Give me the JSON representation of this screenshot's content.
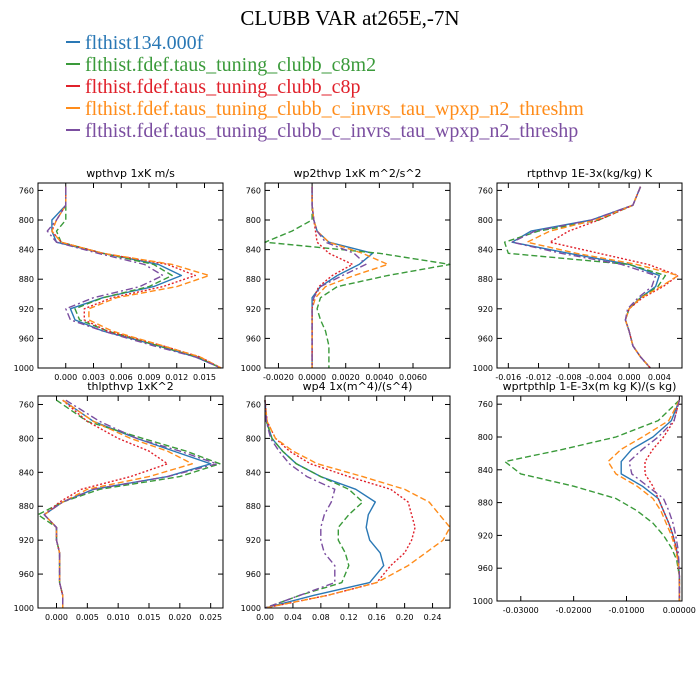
{
  "title": "CLUBB VAR at265E,-7N",
  "colors": {
    "blue": "#2a78b5",
    "green": "#3a9a3a",
    "red": "#e0212b",
    "orange": "#ff8c1a",
    "purple": "#7b4ea0"
  },
  "legend": [
    {
      "label": "flthist134.000f",
      "color": "#2a78b5"
    },
    {
      "label": "flthist.fdef.taus_tuning_clubb_c8m2",
      "color": "#3a9a3a"
    },
    {
      "label": "flthist.fdef.taus_tuning_clubb_c8p",
      "color": "#e0212b"
    },
    {
      "label": "flthist.fdef.taus_tuning_clubb_c_invrs_tau_wpxp_n2_threshm",
      "color": "#ff8c1a"
    },
    {
      "label": "flthist.fdef.taus_tuning_clubb_c_invrs_tau_wpxp_n2_threshp",
      "color": "#7b4ea0"
    }
  ],
  "chart_data": [
    {
      "type": "line",
      "title": "wpthvp  1xK m/s",
      "xlim": [
        -0.003,
        0.017
      ],
      "ylim": [
        1000,
        750
      ],
      "xticks": [
        0.0,
        0.003,
        0.006,
        0.009,
        0.012,
        0.015
      ],
      "xtick_labels": [
        "0.000",
        "0.003",
        "0.006",
        "0.009",
        "0.012",
        "0.015"
      ],
      "yticks": [
        760,
        800,
        840,
        880,
        920,
        960,
        1000
      ],
      "y": [
        755,
        780,
        800,
        815,
        830,
        845,
        860,
        875,
        890,
        905,
        920,
        935,
        950,
        970,
        985,
        1000
      ],
      "series": [
        {
          "color": "#2a78b5",
          "style": "solid",
          "values": [
            0.0,
            0.0,
            -0.0015,
            -0.0015,
            -0.001,
            0.004,
            0.01,
            0.0125,
            0.0095,
            0.004,
            0.0005,
            0.001,
            0.004,
            0.01,
            0.014,
            0.0168
          ]
        },
        {
          "color": "#3a9a3a",
          "style": "dashed",
          "values": [
            0.0,
            0.0,
            0.0,
            -0.001,
            -0.0005,
            0.004,
            0.0095,
            0.0115,
            0.009,
            0.004,
            0.001,
            0.0015,
            0.0045,
            0.01,
            0.0142,
            0.0168
          ]
        },
        {
          "color": "#e0212b",
          "style": "dotted",
          "values": [
            0.0,
            0.0,
            -0.001,
            -0.0015,
            -0.0005,
            0.004,
            0.011,
            0.014,
            0.0105,
            0.005,
            0.002,
            0.002,
            0.0045,
            0.0105,
            0.0145,
            0.0168
          ]
        },
        {
          "color": "#ff8c1a",
          "style": "dashed",
          "values": [
            0.0,
            0.0,
            -0.001,
            -0.0015,
            -0.0005,
            0.004,
            0.0115,
            0.0155,
            0.012,
            0.0055,
            0.0025,
            0.0025,
            0.005,
            0.0105,
            0.0145,
            0.0168
          ]
        },
        {
          "color": "#7b4ea0",
          "style": "dashdot",
          "values": [
            0.0,
            0.0,
            -0.001,
            -0.002,
            -0.001,
            0.0035,
            0.0085,
            0.0105,
            0.008,
            0.003,
            0.0,
            0.0005,
            0.004,
            0.0095,
            0.014,
            0.0168
          ]
        }
      ]
    },
    {
      "type": "line",
      "title": "wp2thvp  1xK m^2/s^2",
      "xlim": [
        -0.0028,
        0.0082
      ],
      "ylim": [
        1000,
        750
      ],
      "xticks": [
        -0.002,
        0.0,
        0.002,
        0.004,
        0.006
      ],
      "xtick_labels": [
        "-0.0020",
        "0.0000",
        "0.0020",
        "0.0040",
        "0.0060"
      ],
      "yticks": [
        760,
        800,
        840,
        880,
        920,
        960,
        1000
      ],
      "y": [
        755,
        780,
        800,
        815,
        830,
        845,
        860,
        875,
        890,
        905,
        920,
        935,
        950,
        970,
        985,
        1000
      ],
      "series": [
        {
          "color": "#2a78b5",
          "style": "solid",
          "values": [
            0.0,
            0.0,
            0.0001,
            0.0003,
            0.001,
            0.0036,
            0.0028,
            0.0015,
            0.0005,
            0.0,
            0.0,
            0.0,
            0.0,
            0.0,
            0.0,
            0.0
          ]
        },
        {
          "color": "#3a9a3a",
          "style": "dashed",
          "values": [
            0.0,
            0.0,
            0.0,
            -0.0012,
            -0.0028,
            0.004,
            0.0082,
            0.0045,
            0.0015,
            0.0005,
            0.0003,
            0.0005,
            0.0008,
            0.001,
            0.001,
            0.001
          ]
        },
        {
          "color": "#e0212b",
          "style": "dotted",
          "values": [
            0.0,
            0.0,
            0.0001,
            0.0002,
            0.0003,
            0.001,
            0.0024,
            0.0012,
            0.0004,
            0.0001,
            0.0,
            0.0,
            0.0,
            0.0,
            0.0,
            0.0
          ]
        },
        {
          "color": "#ff8c1a",
          "style": "dashed",
          "values": [
            0.0,
            0.0,
            0.0001,
            0.0003,
            0.001,
            0.003,
            0.0045,
            0.0025,
            0.0008,
            0.0002,
            0.0,
            0.0,
            0.0,
            0.0,
            0.0,
            0.0
          ]
        },
        {
          "color": "#7b4ea0",
          "style": "dashdot",
          "values": [
            0.0,
            0.0,
            0.0001,
            0.0003,
            0.0008,
            0.0025,
            0.0032,
            0.0018,
            0.0005,
            0.0001,
            0.0,
            0.0,
            0.0,
            0.0,
            0.0,
            0.0
          ]
        }
      ]
    },
    {
      "type": "line",
      "title": "rtpthvp  1E-3x(kg/kg) K",
      "xlim": [
        -0.0175,
        0.007
      ],
      "ylim": [
        1000,
        750
      ],
      "xticks": [
        -0.016,
        -0.012,
        -0.008,
        -0.004,
        0.0,
        0.004
      ],
      "xtick_labels": [
        "-0.016",
        "-0.012",
        "-0.008",
        "-0.004",
        "0.000",
        "0.004"
      ],
      "yticks": [
        760,
        800,
        840,
        880,
        920,
        960,
        1000
      ],
      "y": [
        755,
        780,
        800,
        815,
        830,
        845,
        860,
        875,
        890,
        905,
        920,
        935,
        950,
        970,
        985,
        1000
      ],
      "series": [
        {
          "color": "#2a78b5",
          "style": "solid",
          "values": [
            0.0015,
            0.0005,
            -0.005,
            -0.013,
            -0.0155,
            -0.008,
            0.0,
            0.004,
            0.0035,
            0.0015,
            0.0,
            -0.0005,
            0.0,
            0.0005,
            0.0015,
            0.0028
          ]
        },
        {
          "color": "#3a9a3a",
          "style": "dashed",
          "values": [
            0.0015,
            0.0005,
            -0.004,
            -0.012,
            -0.0165,
            -0.016,
            0.0,
            0.0048,
            0.0038,
            0.0015,
            0.0,
            -0.0005,
            0.0,
            0.0005,
            0.0015,
            0.0028
          ]
        },
        {
          "color": "#e0212b",
          "style": "dotted",
          "values": [
            0.0015,
            0.0005,
            -0.004,
            -0.008,
            -0.0105,
            -0.004,
            0.0025,
            0.0065,
            0.0045,
            0.0018,
            0.0,
            -0.0005,
            0.0,
            0.0005,
            0.0015,
            0.0028
          ]
        },
        {
          "color": "#ff8c1a",
          "style": "dashed",
          "values": [
            0.0015,
            0.0005,
            -0.0045,
            -0.0105,
            -0.0135,
            -0.007,
            0.001,
            0.0065,
            0.0042,
            0.0016,
            0.0,
            -0.0005,
            0.0,
            0.0005,
            0.0015,
            0.0028
          ]
        },
        {
          "color": "#7b4ea0",
          "style": "dashdot",
          "values": [
            0.0015,
            0.0005,
            -0.005,
            -0.0125,
            -0.0155,
            -0.009,
            -0.001,
            0.0035,
            0.003,
            0.0012,
            -0.0002,
            -0.0005,
            0.0,
            0.0005,
            0.0015,
            0.0028
          ]
        }
      ]
    },
    {
      "type": "line",
      "title": "thlpthvp  1xK^2",
      "xlim": [
        -0.003,
        0.027
      ],
      "ylim": [
        1000,
        750
      ],
      "xticks": [
        0.0,
        0.005,
        0.01,
        0.015,
        0.02,
        0.025
      ],
      "xtick_labels": [
        "0.000",
        "0.005",
        "0.010",
        "0.015",
        "0.020",
        "0.025"
      ],
      "yticks": [
        760,
        800,
        840,
        880,
        920,
        960,
        1000
      ],
      "y": [
        755,
        780,
        800,
        815,
        830,
        845,
        860,
        875,
        890,
        905,
        920,
        935,
        950,
        970,
        985,
        1000
      ],
      "series": [
        {
          "color": "#2a78b5",
          "style": "solid",
          "values": [
            0.001,
            0.006,
            0.013,
            0.019,
            0.025,
            0.018,
            0.006,
            0.001,
            -0.002,
            0.0,
            0.0,
            0.0005,
            0.0005,
            0.0005,
            0.001,
            0.001
          ]
        },
        {
          "color": "#3a9a3a",
          "style": "dashed",
          "values": [
            0.0,
            0.005,
            0.014,
            0.021,
            0.0265,
            0.02,
            0.007,
            0.001,
            -0.003,
            0.0,
            0.0,
            0.0005,
            0.0005,
            0.0005,
            0.001,
            0.001
          ]
        },
        {
          "color": "#e0212b",
          "style": "dotted",
          "values": [
            0.001,
            0.005,
            0.01,
            0.015,
            0.018,
            0.012,
            0.004,
            0.0005,
            -0.002,
            0.0,
            0.0,
            0.0005,
            0.0005,
            0.0005,
            0.001,
            0.001
          ]
        },
        {
          "color": "#ff8c1a",
          "style": "dashed",
          "values": [
            0.001,
            0.006,
            0.012,
            0.018,
            0.022,
            0.015,
            0.005,
            0.001,
            -0.002,
            0.0,
            0.0,
            0.0005,
            0.0005,
            0.0005,
            0.001,
            0.001
          ]
        },
        {
          "color": "#7b4ea0",
          "style": "dashdot",
          "values": [
            0.0015,
            0.007,
            0.013,
            0.02,
            0.026,
            0.018,
            0.006,
            0.001,
            -0.002,
            0.0,
            0.0,
            0.0005,
            0.0005,
            0.0005,
            0.001,
            0.001
          ]
        }
      ]
    },
    {
      "type": "line",
      "title": "wp4  1x(m^4)/(s^4)",
      "xlim": [
        0.0,
        0.265
      ],
      "ylim": [
        1000,
        750
      ],
      "xticks": [
        0.0,
        0.04,
        0.08,
        0.12,
        0.16,
        0.2,
        0.24
      ],
      "xtick_labels": [
        "0.00",
        "0.04",
        "0.08",
        "0.12",
        "0.16",
        "0.20",
        "0.24"
      ],
      "yticks": [
        760,
        800,
        840,
        880,
        920,
        960,
        1000
      ],
      "y": [
        755,
        780,
        800,
        815,
        830,
        845,
        860,
        875,
        890,
        905,
        920,
        935,
        950,
        970,
        985,
        1000
      ],
      "series": [
        {
          "color": "#2a78b5",
          "style": "solid",
          "values": [
            0.0,
            0.002,
            0.01,
            0.025,
            0.045,
            0.08,
            0.13,
            0.158,
            0.148,
            0.145,
            0.15,
            0.165,
            0.17,
            0.15,
            0.07,
            0.0
          ]
        },
        {
          "color": "#3a9a3a",
          "style": "dashed",
          "values": [
            0.0,
            0.002,
            0.01,
            0.025,
            0.045,
            0.08,
            0.12,
            0.14,
            0.12,
            0.105,
            0.105,
            0.115,
            0.12,
            0.11,
            0.05,
            0.0
          ]
        },
        {
          "color": "#e0212b",
          "style": "dotted",
          "values": [
            0.0,
            0.003,
            0.015,
            0.035,
            0.065,
            0.12,
            0.18,
            0.205,
            0.21,
            0.215,
            0.21,
            0.2,
            0.18,
            0.16,
            0.09,
            0.0
          ]
        },
        {
          "color": "#ff8c1a",
          "style": "dashed",
          "values": [
            0.0,
            0.003,
            0.015,
            0.04,
            0.075,
            0.14,
            0.2,
            0.235,
            0.25,
            0.265,
            0.255,
            0.23,
            0.205,
            0.16,
            0.09,
            0.0
          ]
        },
        {
          "color": "#7b4ea0",
          "style": "dashdot",
          "values": [
            0.0,
            0.002,
            0.008,
            0.02,
            0.035,
            0.06,
            0.1,
            0.095,
            0.085,
            0.08,
            0.08,
            0.085,
            0.1,
            0.1,
            0.05,
            0.0
          ]
        }
      ]
    },
    {
      "type": "line",
      "title": "wprtpthlp  1-E-3x(m kg K)/(s kg)",
      "xlim": [
        -0.0345,
        0.0005
      ],
      "ylim": [
        1000,
        750
      ],
      "xticks": [
        -0.03,
        -0.02,
        -0.01,
        0.0
      ],
      "xtick_labels": [
        "-0.03000",
        "-0.02000",
        "-0.01000",
        "0.00000"
      ],
      "yticks": [
        760,
        800,
        840,
        880,
        920,
        960,
        1000
      ],
      "y": [
        755,
        780,
        800,
        815,
        830,
        845,
        860,
        875,
        890,
        905,
        920,
        935,
        950,
        970,
        985,
        1000
      ],
      "series": [
        {
          "color": "#2a78b5",
          "style": "solid",
          "values": [
            0.0,
            -0.0015,
            -0.005,
            -0.009,
            -0.011,
            -0.011,
            -0.007,
            -0.004,
            -0.003,
            -0.002,
            -0.0012,
            -0.0006,
            -0.0002,
            0.0,
            0.0,
            0.0
          ]
        },
        {
          "color": "#3a9a3a",
          "style": "dashed",
          "values": [
            0.0,
            -0.004,
            -0.012,
            -0.022,
            -0.033,
            -0.03,
            -0.02,
            -0.012,
            -0.008,
            -0.005,
            -0.003,
            -0.0015,
            -0.0005,
            0.0,
            0.0,
            0.0
          ]
        },
        {
          "color": "#e0212b",
          "style": "dotted",
          "values": [
            0.0,
            -0.001,
            -0.003,
            -0.005,
            -0.0065,
            -0.0065,
            -0.005,
            -0.004,
            -0.003,
            -0.002,
            -0.0012,
            -0.0006,
            -0.0002,
            0.0,
            0.0,
            0.0
          ]
        },
        {
          "color": "#ff8c1a",
          "style": "dashed",
          "values": [
            0.0,
            -0.002,
            -0.007,
            -0.011,
            -0.0135,
            -0.012,
            -0.008,
            -0.005,
            -0.0035,
            -0.0025,
            -0.0015,
            -0.0008,
            -0.0003,
            0.0,
            0.0,
            0.0
          ]
        },
        {
          "color": "#7b4ea0",
          "style": "dashdot",
          "values": [
            0.0,
            -0.001,
            -0.004,
            -0.007,
            -0.0095,
            -0.009,
            -0.006,
            -0.003,
            -0.002,
            -0.0012,
            -0.0007,
            -0.0003,
            -0.0001,
            0.0,
            0.0,
            0.0
          ]
        }
      ]
    }
  ]
}
